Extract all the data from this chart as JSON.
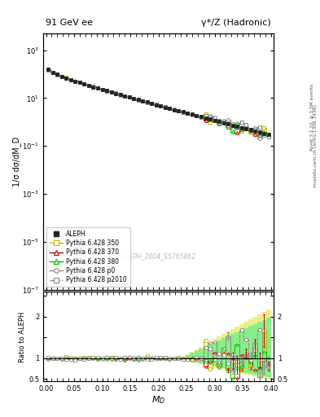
{
  "title_left": "91 GeV ee",
  "title_right": "γ*/Z (Hadronic)",
  "ylabel_main": "1/σ dσ/dM_D",
  "ylabel_ratio": "Ratio to ALEPH",
  "xlabel": "M_D",
  "right_label": "mcplots.cern.ch [arXiv:1306.3436]",
  "right_label2": "Rivet 3.1.10, ≥ 3.3M events",
  "watermark": "ALEPH_2004_S5765862",
  "ylim_main": [
    1e-07,
    5000
  ],
  "ylim_ratio": [
    0.44,
    2.6
  ],
  "xlim": [
    -0.005,
    0.405
  ],
  "background": "#ffffff",
  "legend_entries": [
    "ALEPH",
    "Pythia 6.428 350",
    "Pythia 6.428 370",
    "Pythia 6.428 380",
    "Pythia 6.428 p0",
    "Pythia 6.428 p2010"
  ],
  "aleph_color": "#222222",
  "py350_color": "#bbbb00",
  "py370_color": "#cc0000",
  "py380_color": "#00bb00",
  "py_p0_color": "#888888",
  "py_p2010_color": "#888888",
  "band_yellow": "#eeee88",
  "band_green": "#88ee88"
}
